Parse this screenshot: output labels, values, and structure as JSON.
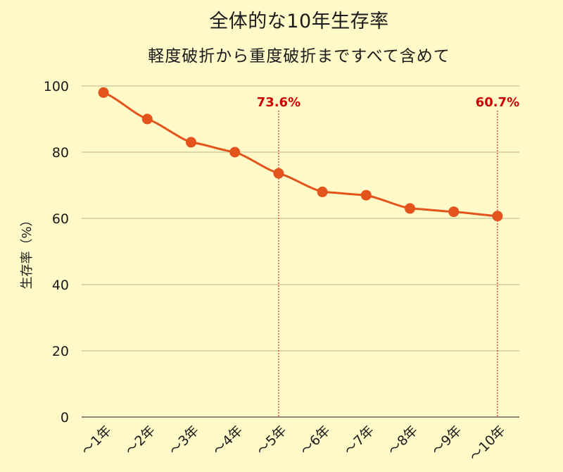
{
  "chart": {
    "title": "全体的な10年生存率",
    "subtitle": "軽度破折から重度破折まですべて含めて"
  },
  "colors": {
    "background": "#fffac8",
    "line": "#e2541c",
    "annotation": "#cc0000",
    "grid": "#cfcba0",
    "axis": "#8a8a7a"
  },
  "chart_data": {
    "type": "line",
    "title": "全体的な10年生存率",
    "subtitle": "軽度破折から重度破折まですべて含めて",
    "xlabel": "",
    "ylabel": "生存率（%）",
    "ylim": [
      0,
      100
    ],
    "yticks": [
      0,
      20,
      40,
      60,
      80,
      100
    ],
    "grid": true,
    "legend": null,
    "categories": [
      "～1年",
      "～2年",
      "～3年",
      "～4年",
      "～5年",
      "～6年",
      "～7年",
      "～8年",
      "～9年",
      "～10年"
    ],
    "series": [
      {
        "name": "生存率",
        "values": [
          98,
          90,
          83,
          80,
          73.6,
          68,
          67,
          63,
          62,
          60.7
        ]
      }
    ],
    "annotations": [
      {
        "category": "～5年",
        "label": "73.6%",
        "value": 73.6
      },
      {
        "category": "～10年",
        "label": "60.7%",
        "value": 60.7
      }
    ]
  }
}
